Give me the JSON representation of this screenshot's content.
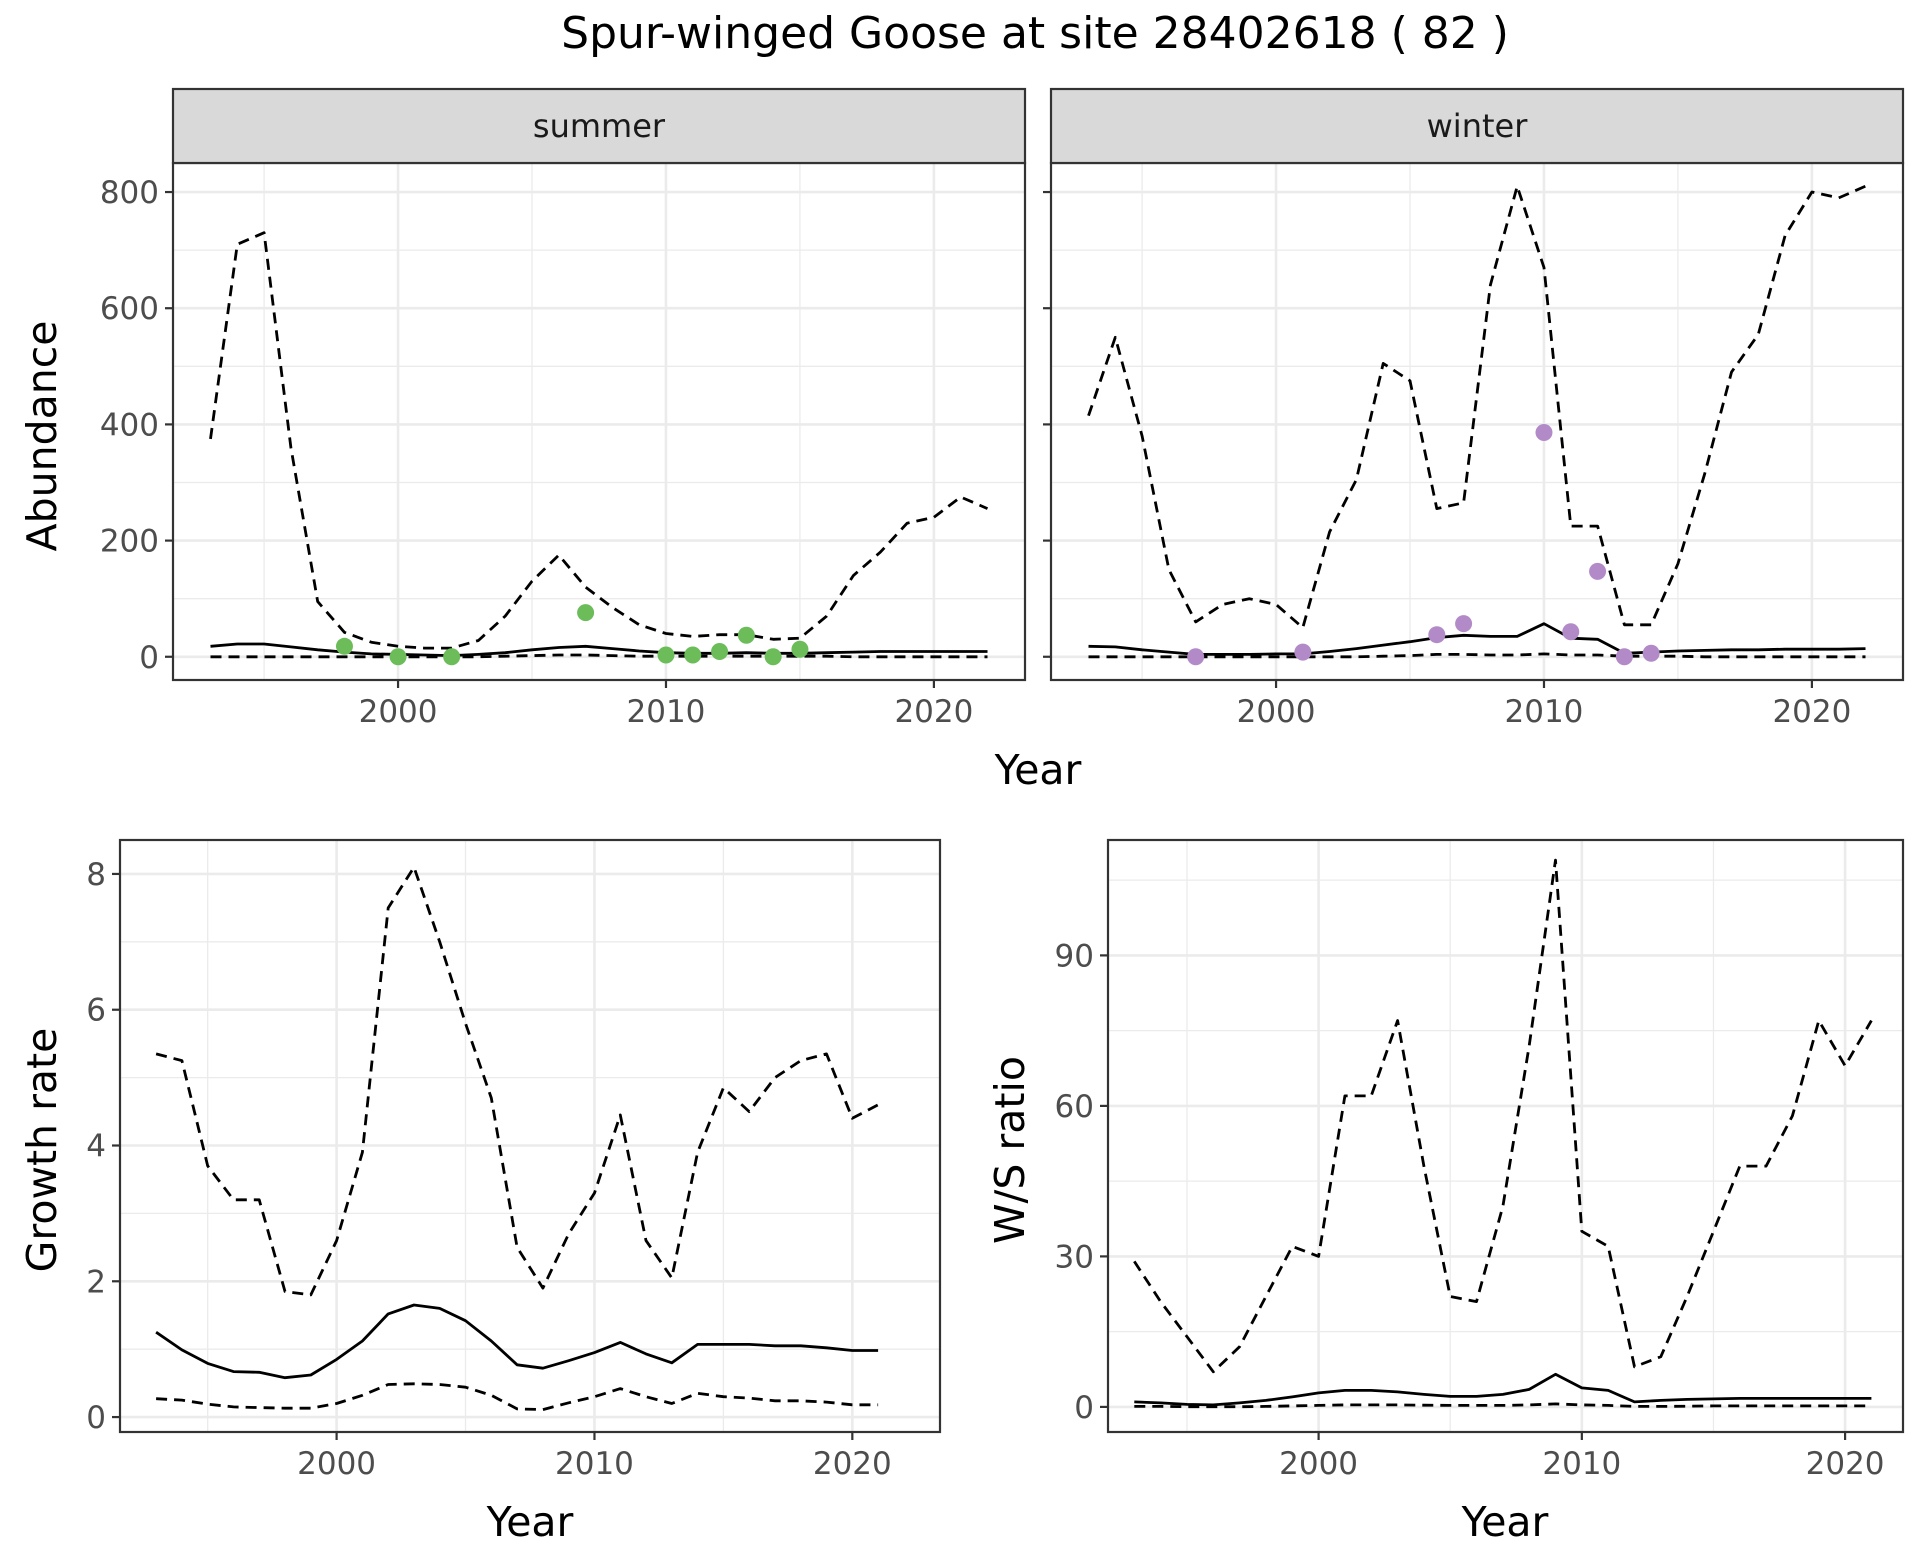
{
  "title": "Spur-winged Goose at site 28402618 ( 82 )",
  "colors": {
    "summer_points": "#6cbc5a",
    "winter_points": "#b38ac8",
    "line": "#000000",
    "grid": "#ebebeb",
    "strip_fill": "#d9d9d9",
    "panel_border": "#333333",
    "tick_text": "#4d4d4d"
  },
  "chart_data": [
    {
      "type": "line",
      "panel": "summer",
      "strip_label": "summer",
      "xlabel": "Year",
      "ylabel": "Abundance",
      "xlim": [
        1991.6,
        2023.4
      ],
      "ylim": [
        -40,
        850
      ],
      "xticks": [
        2000,
        2010,
        2020
      ],
      "yticks": [
        0,
        200,
        400,
        600,
        800
      ],
      "grid": true,
      "series": [
        {
          "role": "upper",
          "style": "dashed",
          "x": [
            1993,
            1994,
            1995,
            1996,
            1997,
            1998,
            1999,
            2000,
            2001,
            2002,
            2003,
            2004,
            2005,
            2006,
            2007,
            2008,
            2009,
            2010,
            2011,
            2012,
            2013,
            2014,
            2015,
            2016,
            2017,
            2018,
            2019,
            2020,
            2021,
            2022
          ],
          "y": [
            375,
            710,
            730,
            360,
            95,
            42,
            25,
            18,
            15,
            15,
            28,
            70,
            130,
            175,
            120,
            85,
            55,
            40,
            35,
            38,
            38,
            30,
            32,
            70,
            140,
            180,
            230,
            240,
            275,
            255
          ]
        },
        {
          "role": "mean",
          "style": "solid",
          "x": [
            1993,
            1994,
            1995,
            1996,
            1997,
            1998,
            1999,
            2000,
            2001,
            2002,
            2003,
            2004,
            2005,
            2006,
            2007,
            2008,
            2009,
            2010,
            2011,
            2012,
            2013,
            2014,
            2015,
            2016,
            2017,
            2018,
            2019,
            2020,
            2021,
            2022
          ],
          "y": [
            18,
            22,
            22,
            17,
            12,
            8,
            5,
            4,
            3,
            2,
            4,
            7,
            12,
            16,
            18,
            14,
            10,
            7,
            6,
            6,
            7,
            6,
            6,
            7,
            8,
            9,
            9,
            9,
            9,
            9
          ]
        },
        {
          "role": "lower",
          "style": "dashed",
          "x": [
            1993,
            1994,
            1995,
            1996,
            1997,
            1998,
            1999,
            2000,
            2001,
            2002,
            2003,
            2004,
            2005,
            2006,
            2007,
            2008,
            2009,
            2010,
            2011,
            2012,
            2013,
            2014,
            2015,
            2016,
            2017,
            2018,
            2019,
            2020,
            2021,
            2022
          ],
          "y": [
            0,
            0,
            0,
            0,
            0,
            0,
            0,
            0,
            0,
            0,
            0,
            1,
            2,
            3,
            3,
            2,
            1,
            1,
            1,
            1,
            1,
            1,
            1,
            1,
            0,
            0,
            0,
            0,
            0,
            0
          ]
        }
      ],
      "points": {
        "x": [
          1998,
          2000,
          2002,
          2007,
          2010,
          2011,
          2012,
          2013,
          2014,
          2015
        ],
        "y": [
          18,
          0,
          0,
          76,
          3,
          3,
          9,
          37,
          0,
          13
        ]
      }
    },
    {
      "type": "line",
      "panel": "winter",
      "strip_label": "winter",
      "xlabel": "Year",
      "ylabel": "",
      "xlim": [
        1991.6,
        2023.4
      ],
      "ylim": [
        -40,
        850
      ],
      "xticks": [
        2000,
        2010,
        2020
      ],
      "yticks": [
        0,
        200,
        400,
        600,
        800
      ],
      "grid": true,
      "series": [
        {
          "role": "upper",
          "style": "dashed",
          "x": [
            1993,
            1994,
            1995,
            1996,
            1997,
            1998,
            1999,
            2000,
            2001,
            2002,
            2003,
            2004,
            2005,
            2006,
            2007,
            2008,
            2009,
            2010,
            2011,
            2012,
            2013,
            2014,
            2015,
            2016,
            2017,
            2018,
            2019,
            2020,
            2021,
            2022
          ],
          "y": [
            415,
            550,
            380,
            150,
            60,
            90,
            100,
            90,
            50,
            215,
            305,
            505,
            475,
            255,
            265,
            640,
            810,
            670,
            225,
            225,
            55,
            55,
            160,
            315,
            490,
            555,
            725,
            800,
            790,
            810
          ]
        },
        {
          "role": "mean",
          "style": "solid",
          "x": [
            1993,
            1994,
            1995,
            1996,
            1997,
            1998,
            1999,
            2000,
            2001,
            2002,
            2003,
            2004,
            2005,
            2006,
            2007,
            2008,
            2009,
            2010,
            2011,
            2012,
            2013,
            2014,
            2015,
            2016,
            2017,
            2018,
            2019,
            2020,
            2021,
            2022
          ],
          "y": [
            18,
            17,
            12,
            8,
            4,
            4,
            4,
            5,
            5,
            9,
            14,
            20,
            26,
            33,
            37,
            35,
            35,
            57,
            32,
            30,
            6,
            8,
            10,
            11,
            12,
            12,
            13,
            13,
            13,
            14
          ]
        },
        {
          "role": "lower",
          "style": "dashed",
          "x": [
            1993,
            1994,
            1995,
            1996,
            1997,
            1998,
            1999,
            2000,
            2001,
            2002,
            2003,
            2004,
            2005,
            2006,
            2007,
            2008,
            2009,
            2010,
            2011,
            2012,
            2013,
            2014,
            2015,
            2016,
            2017,
            2018,
            2019,
            2020,
            2021,
            2022
          ],
          "y": [
            0,
            0,
            0,
            0,
            0,
            0,
            0,
            0,
            0,
            0,
            0,
            1,
            2,
            4,
            4,
            3,
            3,
            5,
            3,
            3,
            1,
            1,
            1,
            0,
            0,
            0,
            0,
            0,
            0,
            0
          ]
        }
      ],
      "points": {
        "x": [
          1997,
          2001,
          2006,
          2007,
          2010,
          2011,
          2012,
          2013,
          2014
        ],
        "y": [
          0,
          8,
          38,
          57,
          386,
          43,
          147,
          0,
          6
        ]
      }
    },
    {
      "type": "line",
      "panel": "growth",
      "xlabel": "Year",
      "ylabel": "Growth rate",
      "xlim": [
        1991.6,
        2023.4
      ],
      "ylim": [
        -0.22,
        8.5
      ],
      "xticks": [
        2000,
        2010,
        2020
      ],
      "yticks": [
        0,
        2,
        4,
        6,
        8
      ],
      "grid": true,
      "series": [
        {
          "role": "upper",
          "style": "dashed",
          "x": [
            1993,
            1994,
            1995,
            1996,
            1997,
            1998,
            1999,
            2000,
            2001,
            2002,
            2003,
            2004,
            2005,
            2006,
            2007,
            2008,
            2009,
            2010,
            2011,
            2012,
            2013,
            2014,
            2015,
            2016,
            2017,
            2018,
            2019,
            2020,
            2021
          ],
          "y": [
            5.35,
            5.25,
            3.7,
            3.2,
            3.2,
            1.85,
            1.8,
            2.6,
            3.9,
            7.5,
            8.1,
            7.0,
            5.8,
            4.7,
            2.5,
            1.9,
            2.7,
            3.3,
            4.45,
            2.6,
            2.05,
            3.9,
            4.85,
            4.5,
            5.0,
            5.25,
            5.35,
            4.4,
            4.6
          ]
        },
        {
          "role": "mean",
          "style": "solid",
          "x": [
            1993,
            1994,
            1995,
            1996,
            1997,
            1998,
            1999,
            2000,
            2001,
            2002,
            2003,
            2004,
            2005,
            2006,
            2007,
            2008,
            2009,
            2010,
            2011,
            2012,
            2013,
            2014,
            2015,
            2016,
            2017,
            2018,
            2019,
            2020,
            2021
          ],
          "y": [
            1.25,
            0.99,
            0.79,
            0.67,
            0.66,
            0.58,
            0.62,
            0.85,
            1.12,
            1.52,
            1.65,
            1.6,
            1.42,
            1.12,
            0.77,
            0.72,
            0.83,
            0.95,
            1.1,
            0.93,
            0.8,
            1.07,
            1.07,
            1.07,
            1.05,
            1.05,
            1.02,
            0.98,
            0.98
          ]
        },
        {
          "role": "lower",
          "style": "dashed",
          "x": [
            1993,
            1994,
            1995,
            1996,
            1997,
            1998,
            1999,
            2000,
            2001,
            2002,
            2003,
            2004,
            2005,
            2006,
            2007,
            2008,
            2009,
            2010,
            2011,
            2012,
            2013,
            2014,
            2015,
            2016,
            2017,
            2018,
            2019,
            2020,
            2021
          ],
          "y": [
            0.27,
            0.25,
            0.19,
            0.15,
            0.14,
            0.13,
            0.13,
            0.2,
            0.32,
            0.48,
            0.49,
            0.48,
            0.44,
            0.32,
            0.12,
            0.11,
            0.21,
            0.3,
            0.42,
            0.3,
            0.2,
            0.35,
            0.3,
            0.28,
            0.24,
            0.24,
            0.22,
            0.18,
            0.18
          ]
        }
      ]
    },
    {
      "type": "line",
      "panel": "ws_ratio",
      "xlabel": "Year",
      "ylabel": "W/S ratio",
      "xlim": [
        1992,
        2022.2
      ],
      "ylim": [
        -5,
        113
      ],
      "xticks": [
        2000,
        2010,
        2020
      ],
      "yticks": [
        0,
        30,
        60,
        90
      ],
      "grid": true,
      "series": [
        {
          "role": "upper",
          "style": "dashed",
          "x": [
            1993,
            1994,
            1995,
            1996,
            1997,
            1998,
            1999,
            2000,
            2001,
            2002,
            2003,
            2004,
            2005,
            2006,
            2007,
            2008,
            2009,
            2010,
            2011,
            2012,
            2013,
            2014,
            2015,
            2016,
            2017,
            2018,
            2019,
            2020,
            2021
          ],
          "y": [
            29,
            21,
            14,
            7,
            12,
            22,
            32,
            30,
            62,
            62,
            77,
            48,
            22,
            21,
            40,
            72,
            109,
            35,
            32,
            8,
            10,
            22,
            35,
            48,
            48,
            58,
            77,
            68,
            77
          ]
        },
        {
          "role": "mean",
          "style": "solid",
          "x": [
            1993,
            1994,
            1995,
            1996,
            1997,
            1998,
            1999,
            2000,
            2001,
            2002,
            2003,
            2004,
            2005,
            2006,
            2007,
            2008,
            2009,
            2010,
            2011,
            2012,
            2013,
            2014,
            2015,
            2016,
            2017,
            2018,
            2019,
            2020,
            2021
          ],
          "y": [
            1.0,
            0.8,
            0.5,
            0.4,
            0.8,
            1.3,
            2.0,
            2.8,
            3.3,
            3.3,
            3.0,
            2.5,
            2.1,
            2.1,
            2.5,
            3.5,
            6.5,
            3.8,
            3.3,
            1.0,
            1.3,
            1.5,
            1.6,
            1.7,
            1.7,
            1.7,
            1.7,
            1.7,
            1.7
          ]
        },
        {
          "role": "lower",
          "style": "dashed",
          "x": [
            1993,
            1994,
            1995,
            1996,
            1997,
            1998,
            1999,
            2000,
            2001,
            2002,
            2003,
            2004,
            2005,
            2006,
            2007,
            2008,
            2009,
            2010,
            2011,
            2012,
            2013,
            2014,
            2015,
            2016,
            2017,
            2018,
            2019,
            2020,
            2021
          ],
          "y": [
            0.1,
            0.1,
            0.05,
            0.05,
            0.05,
            0.1,
            0.2,
            0.3,
            0.4,
            0.4,
            0.4,
            0.35,
            0.3,
            0.3,
            0.3,
            0.4,
            0.6,
            0.4,
            0.3,
            0.1,
            0.1,
            0.15,
            0.2,
            0.2,
            0.2,
            0.2,
            0.2,
            0.2,
            0.2
          ]
        }
      ]
    }
  ]
}
